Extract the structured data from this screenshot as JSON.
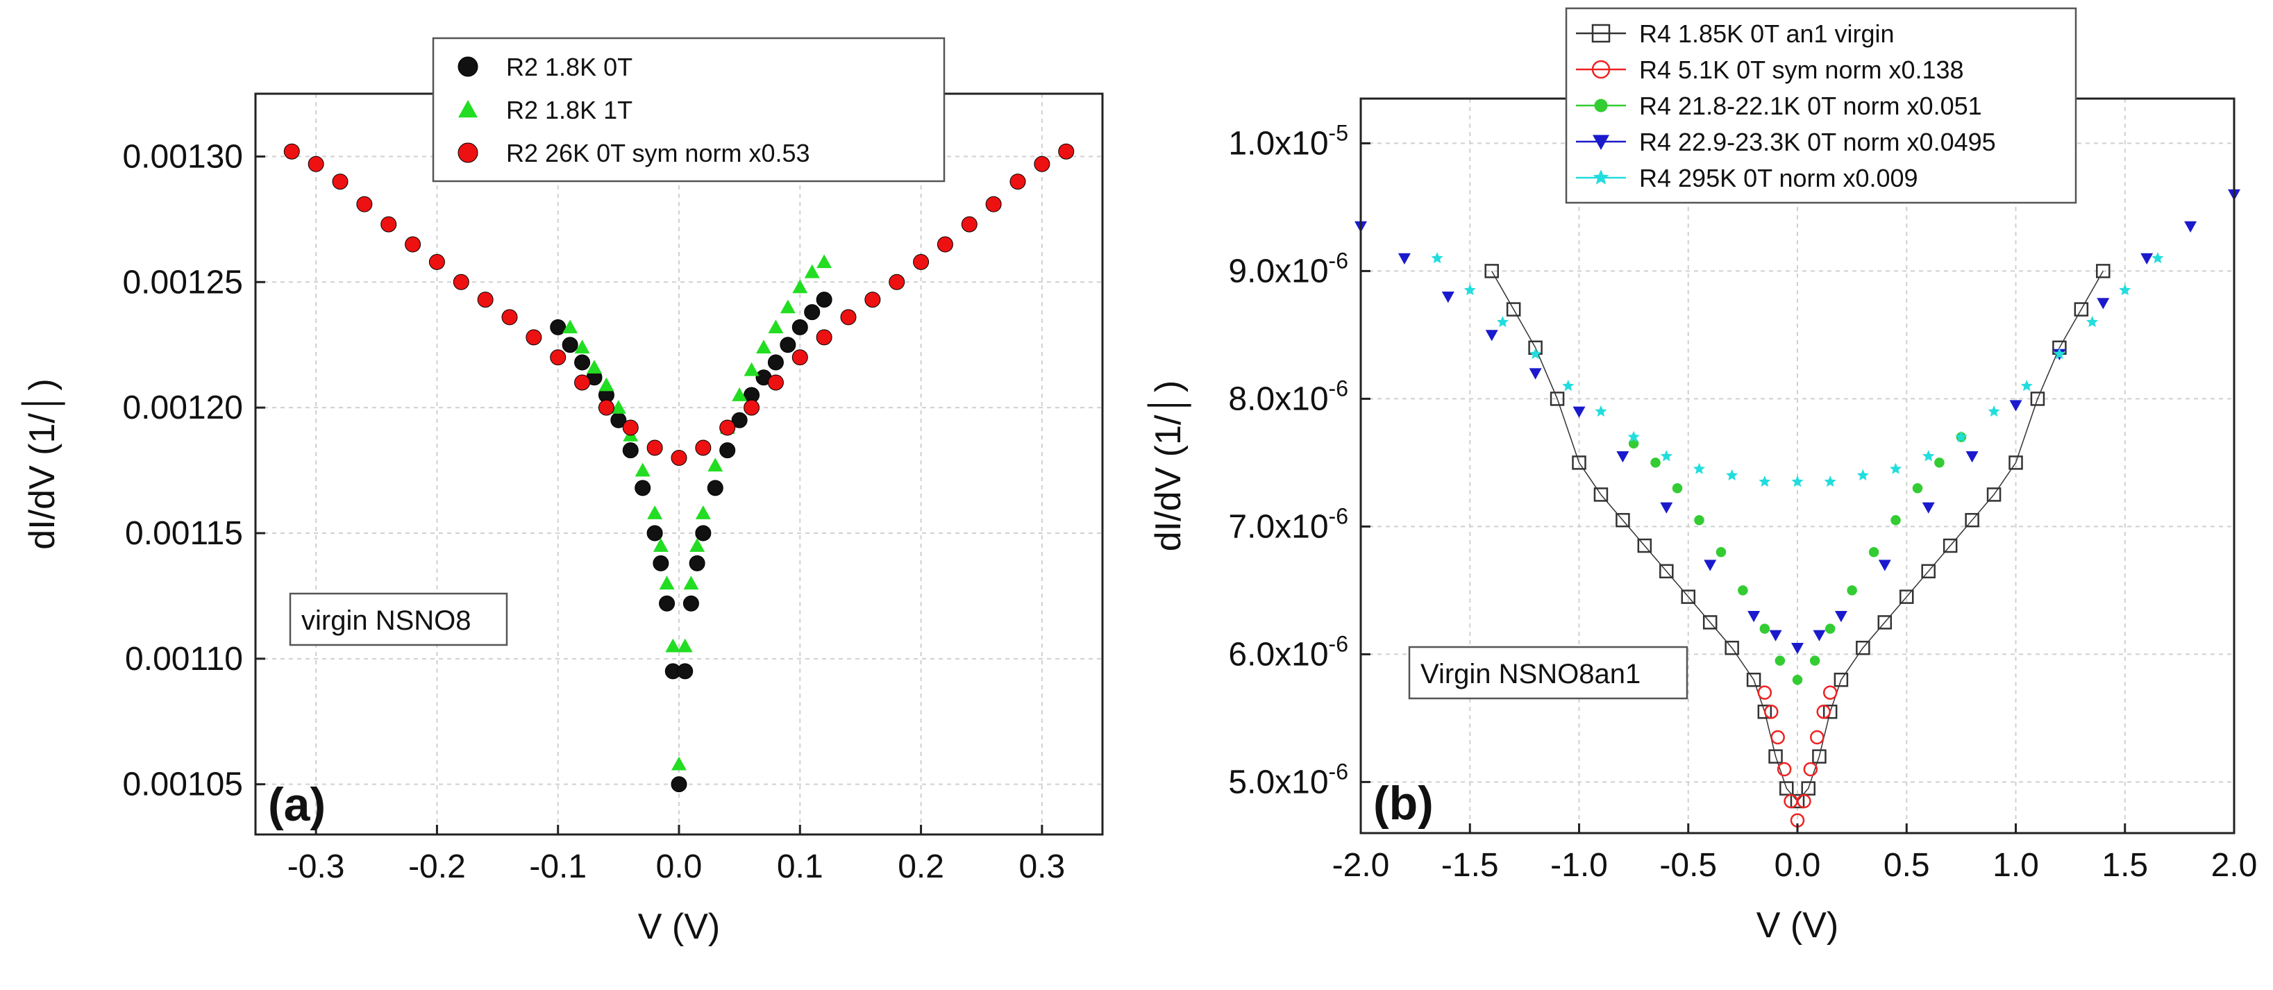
{
  "chart_data": [
    {
      "type": "scatter",
      "panel_label": "(a)",
      "xlabel": "V (V)",
      "ylabel": "dI/dV (1/│)",
      "xlim": [
        -0.35,
        0.35
      ],
      "ylim": [
        0.00103,
        0.001325
      ],
      "xticks": [
        -0.3,
        -0.2,
        -0.1,
        0.0,
        0.1,
        0.2,
        0.3
      ],
      "xtick_labels": [
        "-0.3",
        "-0.2",
        "-0.1",
        "0.0",
        "0.1",
        "0.2",
        "0.3"
      ],
      "yticks": [
        0.00105,
        0.0011,
        0.00115,
        0.0012,
        0.00125,
        0.0013
      ],
      "ytick_labels": [
        "0.00105",
        "0.00110",
        "0.00115",
        "0.00120",
        "0.00125",
        "0.00130"
      ],
      "grid": true,
      "legend_position": "top-center",
      "annotation": "virgin NSNO8",
      "series": [
        {
          "name": "R2  1.8K  0T",
          "marker": "circle",
          "color": "#111111",
          "x": [
            -0.1,
            -0.09,
            -0.08,
            -0.07,
            -0.06,
            -0.05,
            -0.04,
            -0.03,
            -0.02,
            -0.015,
            -0.01,
            -0.005,
            0,
            0.005,
            0.01,
            0.015,
            0.02,
            0.03,
            0.04,
            0.05,
            0.06,
            0.07,
            0.08,
            0.09,
            0.1,
            0.11,
            0.12
          ],
          "y": [
            0.001232,
            0.001225,
            0.001218,
            0.001212,
            0.001205,
            0.001195,
            0.001183,
            0.001168,
            0.00115,
            0.001138,
            0.001122,
            0.001095,
            0.00105,
            0.001095,
            0.001122,
            0.001138,
            0.00115,
            0.001168,
            0.001183,
            0.001195,
            0.001205,
            0.001212,
            0.001218,
            0.001225,
            0.001232,
            0.001238,
            0.001243
          ]
        },
        {
          "name": "R2  1.8K  1T",
          "marker": "triangle",
          "color": "#22dd22",
          "x": [
            -0.09,
            -0.08,
            -0.07,
            -0.06,
            -0.05,
            -0.04,
            -0.03,
            -0.02,
            -0.015,
            -0.01,
            -0.005,
            0,
            0.005,
            0.01,
            0.015,
            0.02,
            0.03,
            0.04,
            0.05,
            0.06,
            0.07,
            0.08,
            0.09,
            0.1,
            0.11,
            0.12
          ],
          "y": [
            0.001232,
            0.001224,
            0.001216,
            0.001209,
            0.0012,
            0.001189,
            0.001175,
            0.001158,
            0.001145,
            0.00113,
            0.001105,
            0.001058,
            0.001105,
            0.00113,
            0.001145,
            0.001158,
            0.001177,
            0.001192,
            0.001205,
            0.001215,
            0.001224,
            0.001232,
            0.00124,
            0.001248,
            0.001254,
            0.001258
          ]
        },
        {
          "name": "R2  26K  0T sym norm x0.53",
          "marker": "circle",
          "color": "#ee1111",
          "x": [
            -0.32,
            -0.3,
            -0.28,
            -0.26,
            -0.24,
            -0.22,
            -0.2,
            -0.18,
            -0.16,
            -0.14,
            -0.12,
            -0.1,
            -0.08,
            -0.06,
            -0.04,
            -0.02,
            0,
            0.02,
            0.04,
            0.06,
            0.08,
            0.1,
            0.12,
            0.14,
            0.16,
            0.18,
            0.2,
            0.22,
            0.24,
            0.26,
            0.28,
            0.3,
            0.32
          ],
          "y": [
            0.001302,
            0.001297,
            0.00129,
            0.001281,
            0.001273,
            0.001265,
            0.001258,
            0.00125,
            0.001243,
            0.001236,
            0.001228,
            0.00122,
            0.00121,
            0.0012,
            0.001192,
            0.001184,
            0.00118,
            0.001184,
            0.001192,
            0.0012,
            0.00121,
            0.00122,
            0.001228,
            0.001236,
            0.001243,
            0.00125,
            0.001258,
            0.001265,
            0.001273,
            0.001281,
            0.00129,
            0.001297,
            0.001302
          ]
        }
      ]
    },
    {
      "type": "scatter",
      "panel_label": "(b)",
      "xlabel": "V (V)",
      "ylabel": "dI/dV (1/│)",
      "xlim": [
        -2.0,
        2.0
      ],
      "ylim": [
        4.6e-06,
        1.035e-05
      ],
      "xticks": [
        -2.0,
        -1.5,
        -1.0,
        -0.5,
        0.0,
        0.5,
        1.0,
        1.5,
        2.0
      ],
      "xtick_labels": [
        "-2.0",
        "-1.5",
        "-1.0",
        "-0.5",
        "0.0",
        "0.5",
        "1.0",
        "1.5",
        "2.0"
      ],
      "yticks": [
        5e-06,
        6e-06,
        7e-06,
        8e-06,
        9e-06,
        1e-05
      ],
      "ytick_labels": [
        {
          "base": "5.0x10",
          "exp": "-6"
        },
        {
          "base": "6.0x10",
          "exp": "-6"
        },
        {
          "base": "7.0x10",
          "exp": "-6"
        },
        {
          "base": "8.0x10",
          "exp": "-6"
        },
        {
          "base": "9.0x10",
          "exp": "-6"
        },
        {
          "base": "1.0x10",
          "exp": "-5"
        }
      ],
      "grid": true,
      "legend_position": "top-center",
      "annotation": "Virgin NSNO8an1",
      "series": [
        {
          "name": "R4 1.85K 0T an1 virgin",
          "marker": "square-open",
          "color": "#333333",
          "x": [
            -1.4,
            -1.3,
            -1.2,
            -1.1,
            -1.0,
            -0.9,
            -0.8,
            -0.7,
            -0.6,
            -0.5,
            -0.4,
            -0.3,
            -0.2,
            -0.15,
            -0.1,
            -0.05,
            0,
            0.05,
            0.1,
            0.15,
            0.2,
            0.3,
            0.4,
            0.5,
            0.6,
            0.7,
            0.8,
            0.9,
            1.0,
            1.1,
            1.2,
            1.3,
            1.4
          ],
          "y": [
            9e-06,
            8.7e-06,
            8.4e-06,
            8e-06,
            7.5e-06,
            7.25e-06,
            7.05e-06,
            6.85e-06,
            6.65e-06,
            6.45e-06,
            6.25e-06,
            6.05e-06,
            5.8e-06,
            5.55e-06,
            5.2e-06,
            4.95e-06,
            4.85e-06,
            4.95e-06,
            5.2e-06,
            5.55e-06,
            5.8e-06,
            6.05e-06,
            6.25e-06,
            6.45e-06,
            6.65e-06,
            6.85e-06,
            7.05e-06,
            7.25e-06,
            7.5e-06,
            8e-06,
            8.4e-06,
            8.7e-06,
            9e-06
          ]
        },
        {
          "name": "R4 5.1K 0T sym norm x0.138",
          "marker": "circle-open",
          "color": "#ee2222",
          "x": [
            -0.15,
            -0.12,
            -0.09,
            -0.06,
            -0.03,
            0,
            0.03,
            0.06,
            0.09,
            0.12,
            0.15
          ],
          "y": [
            5.7e-06,
            5.55e-06,
            5.35e-06,
            5.1e-06,
            4.85e-06,
            4.7e-06,
            4.85e-06,
            5.1e-06,
            5.35e-06,
            5.55e-06,
            5.7e-06
          ]
        },
        {
          "name": "R4 21.8-22.1K 0T norm x0.051",
          "marker": "circle-filled",
          "color": "#33cc33",
          "x": [
            -0.75,
            -0.65,
            -0.55,
            -0.45,
            -0.35,
            -0.25,
            -0.15,
            -0.08,
            0,
            0.08,
            0.15,
            0.25,
            0.35,
            0.45,
            0.55,
            0.65,
            0.75
          ],
          "y": [
            7.65e-06,
            7.5e-06,
            7.3e-06,
            7.05e-06,
            6.8e-06,
            6.5e-06,
            6.2e-06,
            5.95e-06,
            5.8e-06,
            5.95e-06,
            6.2e-06,
            6.5e-06,
            6.8e-06,
            7.05e-06,
            7.3e-06,
            7.5e-06,
            7.7e-06
          ]
        },
        {
          "name": "R4 22.9-23.3K 0T norm x0.0495",
          "marker": "triangle-down",
          "color": "#1a1acc",
          "x": [
            -2.0,
            -1.8,
            -1.6,
            -1.4,
            -1.2,
            -1.0,
            -0.8,
            -0.6,
            -0.4,
            -0.2,
            -0.1,
            0,
            0.1,
            0.2,
            0.4,
            0.6,
            0.8,
            1.0,
            1.2,
            1.4,
            1.6,
            1.8,
            2.0
          ],
          "y": [
            9.35e-06,
            9.1e-06,
            8.8e-06,
            8.5e-06,
            8.2e-06,
            7.9e-06,
            7.55e-06,
            7.15e-06,
            6.7e-06,
            6.3e-06,
            6.15e-06,
            6.05e-06,
            6.15e-06,
            6.3e-06,
            6.7e-06,
            7.15e-06,
            7.55e-06,
            7.95e-06,
            8.35e-06,
            8.75e-06,
            9.1e-06,
            9.35e-06,
            9.6e-06
          ]
        },
        {
          "name": "R4 295K 0T  norm x0.009",
          "marker": "star",
          "color": "#22dddd",
          "x": [
            -1.65,
            -1.5,
            -1.35,
            -1.2,
            -1.05,
            -0.9,
            -0.75,
            -0.6,
            -0.45,
            -0.3,
            -0.15,
            0,
            0.15,
            0.3,
            0.45,
            0.6,
            0.75,
            0.9,
            1.05,
            1.2,
            1.35,
            1.5,
            1.65
          ],
          "y": [
            9.1e-06,
            8.85e-06,
            8.6e-06,
            8.35e-06,
            8.1e-06,
            7.9e-06,
            7.7e-06,
            7.55e-06,
            7.45e-06,
            7.4e-06,
            7.35e-06,
            7.35e-06,
            7.35e-06,
            7.4e-06,
            7.45e-06,
            7.55e-06,
            7.7e-06,
            7.9e-06,
            8.1e-06,
            8.35e-06,
            8.6e-06,
            8.85e-06,
            9.1e-06
          ]
        }
      ]
    }
  ]
}
